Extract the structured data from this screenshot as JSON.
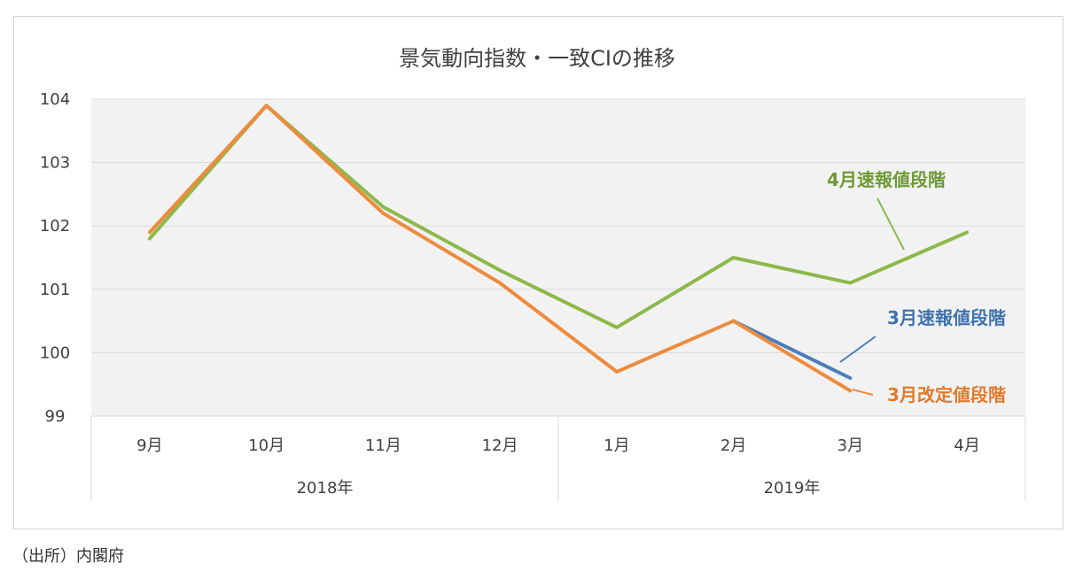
{
  "chart_data": {
    "type": "line",
    "title": "景気動向指数・一致CIの推移",
    "categories": [
      "9月",
      "10月",
      "11月",
      "12月",
      "1月",
      "2月",
      "3月",
      "4月"
    ],
    "year_groups": [
      {
        "label": "2018年",
        "from": 0,
        "to": 3
      },
      {
        "label": "2019年",
        "from": 4,
        "to": 7
      }
    ],
    "yticks": [
      "99",
      "100",
      "101",
      "102",
      "103",
      "104"
    ],
    "ylim": [
      99,
      104
    ],
    "grid": true,
    "series": [
      {
        "name": "3月改定値段階",
        "color": "#ED8B3E",
        "values": [
          101.9,
          103.9,
          102.2,
          101.1,
          99.7,
          100.5,
          99.4,
          null
        ]
      },
      {
        "name": "3月速報値段階",
        "color": "#4A7EBB",
        "values": [
          null,
          null,
          null,
          null,
          null,
          100.5,
          99.6,
          null
        ]
      },
      {
        "name": "4月速報値段階",
        "color": "#8DB84A",
        "values": [
          101.8,
          103.9,
          102.3,
          101.3,
          100.4,
          101.5,
          101.1,
          101.9
        ]
      }
    ],
    "annotations": [
      {
        "text": "4月速報値段階",
        "color": "#6E9A35"
      },
      {
        "text": "3月速報値段階",
        "color": "#3F72AF"
      },
      {
        "text": "3月改定値段階",
        "color": "#E07A2C"
      }
    ]
  },
  "source_note": "（出所）内閣府"
}
